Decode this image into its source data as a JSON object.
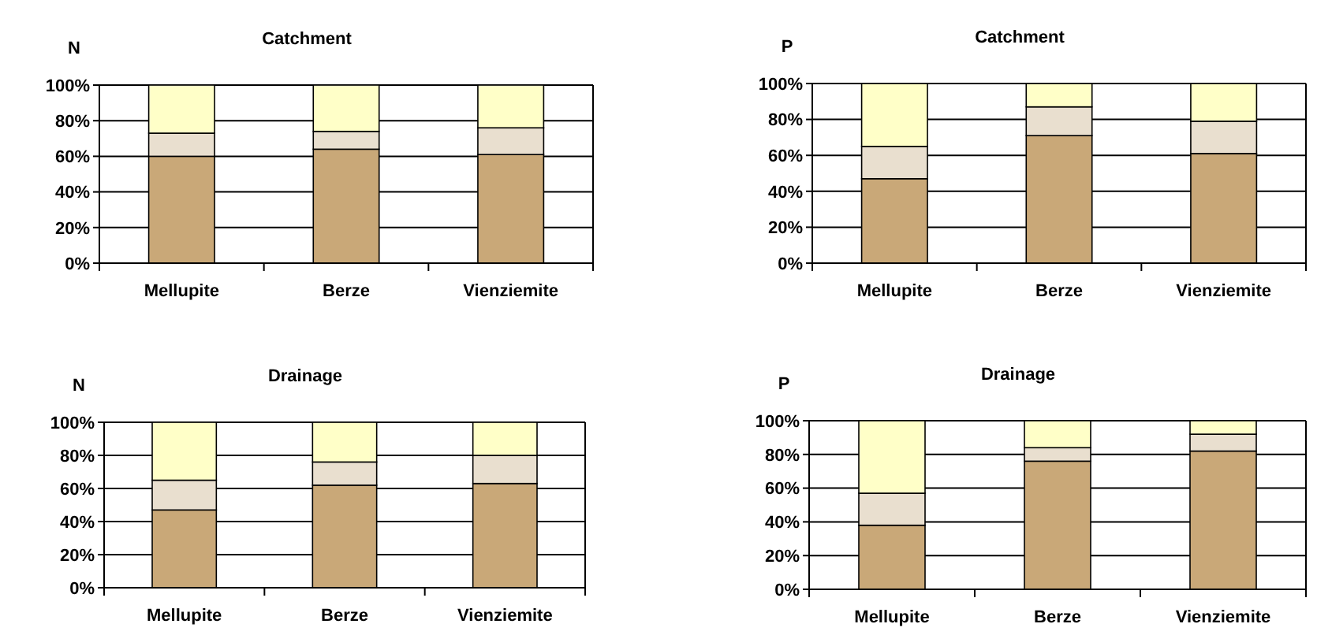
{
  "chart_data": [
    {
      "type": "bar",
      "stacked": true,
      "title": "Catchment",
      "ylabel": "N",
      "categories": [
        "Mellupite",
        "Berze",
        "Vienziemite"
      ],
      "series": [
        {
          "color": "#c9a878",
          "values": [
            60,
            64,
            61
          ]
        },
        {
          "color": "#e9dfcf",
          "values": [
            13,
            10,
            15
          ]
        },
        {
          "color": "#ffffc8",
          "values": [
            27,
            26,
            24
          ]
        }
      ],
      "ylim": [
        0,
        100
      ],
      "yticks": [
        {
          "value": 0,
          "label": "0%"
        },
        {
          "value": 20,
          "label": "20%"
        },
        {
          "value": 40,
          "label": "40%"
        },
        {
          "value": 60,
          "label": "60%"
        },
        {
          "value": 80,
          "label": "80%"
        },
        {
          "value": 100,
          "label": "100%"
        }
      ],
      "grid": "y"
    },
    {
      "type": "bar",
      "stacked": true,
      "title": "Catchment",
      "ylabel": "P",
      "categories": [
        "Mellupite",
        "Berze",
        "Vienziemite"
      ],
      "series": [
        {
          "color": "#c9a878",
          "values": [
            47,
            71,
            61
          ]
        },
        {
          "color": "#e9dfcf",
          "values": [
            18,
            16,
            18
          ]
        },
        {
          "color": "#ffffc8",
          "values": [
            35,
            13,
            21
          ]
        }
      ],
      "ylim": [
        0,
        100
      ],
      "yticks": [
        {
          "value": 0,
          "label": "0%"
        },
        {
          "value": 20,
          "label": "20%"
        },
        {
          "value": 40,
          "label": "40%"
        },
        {
          "value": 60,
          "label": "60%"
        },
        {
          "value": 80,
          "label": "80%"
        },
        {
          "value": 100,
          "label": "100%"
        }
      ],
      "grid": "y"
    },
    {
      "type": "bar",
      "stacked": true,
      "title": "Drainage",
      "ylabel": "N",
      "categories": [
        "Mellupite",
        "Berze",
        "Vienziemite"
      ],
      "series": [
        {
          "color": "#c9a878",
          "values": [
            47,
            62,
            63
          ]
        },
        {
          "color": "#e9dfcf",
          "values": [
            18,
            14,
            17
          ]
        },
        {
          "color": "#ffffc8",
          "values": [
            35,
            24,
            20
          ]
        }
      ],
      "ylim": [
        0,
        100
      ],
      "yticks": [
        {
          "value": 0,
          "label": "0%"
        },
        {
          "value": 20,
          "label": "20%"
        },
        {
          "value": 40,
          "label": "40%"
        },
        {
          "value": 60,
          "label": "60%"
        },
        {
          "value": 80,
          "label": "80%"
        },
        {
          "value": 100,
          "label": "100%"
        }
      ],
      "grid": "y"
    },
    {
      "type": "bar",
      "stacked": true,
      "title": "Drainage",
      "ylabel": "P",
      "categories": [
        "Mellupite",
        "Berze",
        "Vienziemite"
      ],
      "series": [
        {
          "color": "#c9a878",
          "values": [
            38,
            76,
            82
          ]
        },
        {
          "color": "#e9dfcf",
          "values": [
            19,
            8,
            10
          ]
        },
        {
          "color": "#ffffc8",
          "values": [
            43,
            16,
            8
          ]
        }
      ],
      "ylim": [
        0,
        100
      ],
      "yticks": [
        {
          "value": 0,
          "label": "0%"
        },
        {
          "value": 20,
          "label": "20%"
        },
        {
          "value": 40,
          "label": "40%"
        },
        {
          "value": 60,
          "label": "60%"
        },
        {
          "value": 80,
          "label": "80%"
        },
        {
          "value": 100,
          "label": "100%"
        }
      ],
      "grid": "y"
    }
  ]
}
